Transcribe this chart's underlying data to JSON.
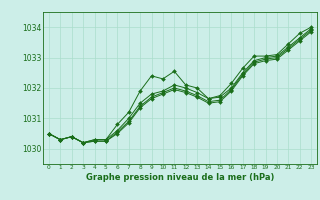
{
  "xlabel": "Graphe pression niveau de la mer (hPa)",
  "background_color": "#cceee8",
  "grid_color": "#aaddcc",
  "line_color": "#1a6e1a",
  "marker_color": "#1a6e1a",
  "xlim": [
    -0.5,
    23.5
  ],
  "ylim": [
    1029.5,
    1034.5
  ],
  "yticks": [
    1030,
    1031,
    1032,
    1033,
    1034
  ],
  "xticks": [
    0,
    1,
    2,
    3,
    4,
    5,
    6,
    7,
    8,
    9,
    10,
    11,
    12,
    13,
    14,
    15,
    16,
    17,
    18,
    19,
    20,
    21,
    22,
    23
  ],
  "series": [
    [
      1030.5,
      1030.3,
      1030.4,
      1030.2,
      1030.3,
      1030.3,
      1030.8,
      1031.2,
      1031.9,
      1032.4,
      1032.3,
      1032.55,
      1032.1,
      1032.0,
      1031.65,
      1031.75,
      1032.15,
      1032.65,
      1033.05,
      1033.05,
      1033.1,
      1033.45,
      1033.8,
      1034.0
    ],
    [
      1030.5,
      1030.3,
      1030.4,
      1030.2,
      1030.3,
      1030.3,
      1030.6,
      1031.0,
      1031.5,
      1031.8,
      1031.9,
      1032.1,
      1032.0,
      1031.85,
      1031.65,
      1031.7,
      1032.0,
      1032.5,
      1032.9,
      1033.0,
      1033.05,
      1033.35,
      1033.65,
      1033.95
    ],
    [
      1030.5,
      1030.3,
      1030.4,
      1030.2,
      1030.25,
      1030.25,
      1030.55,
      1030.9,
      1031.4,
      1031.7,
      1031.85,
      1032.0,
      1031.9,
      1031.75,
      1031.55,
      1031.6,
      1031.95,
      1032.45,
      1032.85,
      1032.95,
      1033.0,
      1033.3,
      1033.6,
      1033.9
    ],
    [
      1030.5,
      1030.3,
      1030.4,
      1030.2,
      1030.25,
      1030.25,
      1030.5,
      1030.85,
      1031.35,
      1031.65,
      1031.8,
      1031.95,
      1031.85,
      1031.7,
      1031.5,
      1031.55,
      1031.9,
      1032.4,
      1032.8,
      1032.9,
      1032.95,
      1033.25,
      1033.55,
      1033.85
    ]
  ]
}
